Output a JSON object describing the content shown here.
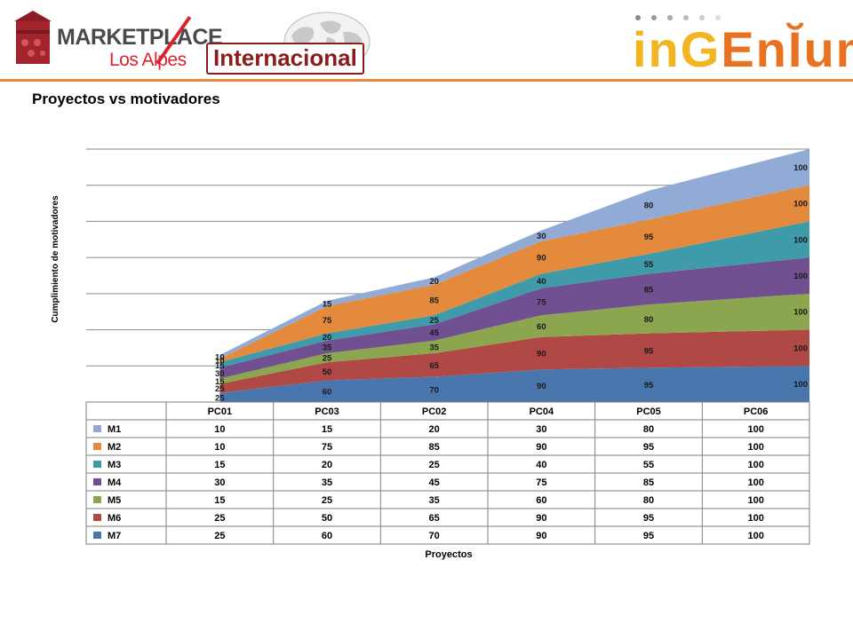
{
  "header": {
    "marketplace_word": "MARKETPLACE",
    "losalpes_word": "Los Alpes",
    "internacional": "Internacional",
    "ingenium_part1": "inG",
    "ingenium_part2": "EnĬum"
  },
  "slide_title": "Proyectos vs motivadores",
  "chart_data": {
    "type": "area",
    "stacked": true,
    "categories": [
      "PC01",
      "PC03",
      "PC02",
      "PC04",
      "PC05",
      "PC06"
    ],
    "series": [
      {
        "name": "M7",
        "color": "#4a76ae",
        "values": [
          25,
          60,
          70,
          90,
          95,
          100
        ]
      },
      {
        "name": "M6",
        "color": "#b04846",
        "values": [
          25,
          50,
          65,
          90,
          95,
          100
        ]
      },
      {
        "name": "M5",
        "color": "#8ca64f",
        "values": [
          15,
          25,
          35,
          60,
          80,
          100
        ]
      },
      {
        "name": "M4",
        "color": "#705090",
        "values": [
          30,
          35,
          45,
          75,
          85,
          100
        ]
      },
      {
        "name": "M3",
        "color": "#3f9aaa",
        "values": [
          15,
          20,
          25,
          40,
          55,
          100
        ]
      },
      {
        "name": "M2",
        "color": "#e38a3d",
        "values": [
          10,
          75,
          85,
          90,
          95,
          100
        ]
      },
      {
        "name": "M1",
        "color": "#92abd6",
        "values": [
          10,
          15,
          20,
          30,
          80,
          100
        ]
      }
    ],
    "table_series_order": [
      "M1",
      "M2",
      "M3",
      "M4",
      "M5",
      "M6",
      "M7"
    ],
    "xlabel": "Proyectos",
    "ylabel": "Cumplimiento de motivadores",
    "gridlines": true,
    "data_table": true
  }
}
